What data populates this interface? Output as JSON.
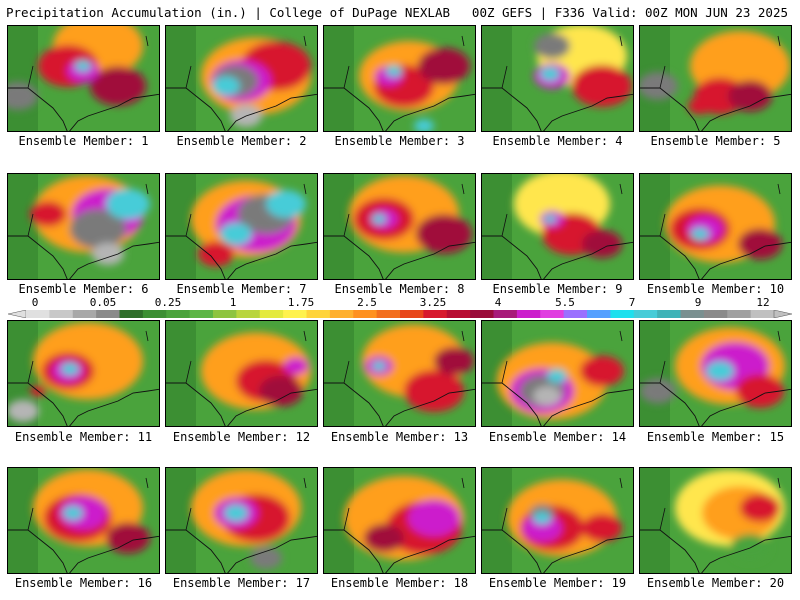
{
  "header": {
    "left": "Precipitation Accumulation (in.) | College of DuPage NEXLAB",
    "right": "00Z GEFS | F336 Valid: 00Z MON JUN 23 2025"
  },
  "members": [
    {
      "label": "Ensemble Member: 1",
      "blobs": [
        [
          "#ff9f1c",
          90,
          20,
          45
        ],
        [
          "#d7192d",
          60,
          40,
          30
        ],
        [
          "#a00a3a",
          110,
          60,
          28
        ],
        [
          "#cc1fcc",
          75,
          45,
          16
        ],
        [
          "#46ccd8",
          75,
          40,
          8
        ],
        [
          "#7a7a7a",
          10,
          70,
          20
        ]
      ]
    },
    {
      "label": "Ensemble Member: 2",
      "blobs": [
        [
          "#ff9f1c",
          90,
          50,
          55
        ],
        [
          "#d7192d",
          110,
          40,
          35
        ],
        [
          "#cc1fcc",
          75,
          55,
          30
        ],
        [
          "#7a7a7a",
          70,
          55,
          22
        ],
        [
          "#46ccd8",
          60,
          60,
          14
        ],
        [
          "#b5b5b5",
          80,
          90,
          16
        ]
      ]
    },
    {
      "label": "Ensemble Member: 3",
      "blobs": [
        [
          "#ff9f1c",
          85,
          50,
          50
        ],
        [
          "#d7192d",
          80,
          60,
          30
        ],
        [
          "#a00a3a",
          120,
          40,
          26
        ],
        [
          "#cc1fcc",
          65,
          50,
          14
        ],
        [
          "#46ccd8",
          70,
          45,
          8
        ],
        [
          "#46ccd8",
          100,
          100,
          10
        ]
      ]
    },
    {
      "label": "Ensemble Member: 4",
      "blobs": [
        [
          "#ffe64d",
          100,
          30,
          45
        ],
        [
          "#d7192d",
          120,
          60,
          30
        ],
        [
          "#cc1fcc",
          70,
          50,
          18
        ],
        [
          "#46ccd8",
          68,
          48,
          10
        ],
        [
          "#7a7a7a",
          70,
          20,
          18
        ]
      ]
    },
    {
      "label": "Ensemble Member: 5",
      "blobs": [
        [
          "#ff9f1c",
          100,
          40,
          50
        ],
        [
          "#d7192d",
          80,
          70,
          26
        ],
        [
          "#a00a3a",
          110,
          70,
          22
        ],
        [
          "#7a7a7a",
          18,
          60,
          20
        ],
        [
          "#d7192d",
          60,
          80,
          12
        ]
      ]
    },
    {
      "label": "Ensemble Member: 6",
      "blobs": [
        [
          "#ff9f1c",
          80,
          40,
          55
        ],
        [
          "#cc1fcc",
          100,
          40,
          36
        ],
        [
          "#7a7a7a",
          90,
          55,
          28
        ],
        [
          "#46ccd8",
          120,
          30,
          22
        ],
        [
          "#b5b5b5",
          100,
          80,
          16
        ],
        [
          "#d7192d",
          40,
          40,
          18
        ]
      ]
    },
    {
      "label": "Ensemble Member: 7",
      "blobs": [
        [
          "#ff9f1c",
          80,
          45,
          55
        ],
        [
          "#cc1fcc",
          90,
          50,
          40
        ],
        [
          "#7a7a7a",
          100,
          40,
          28
        ],
        [
          "#46ccd8",
          120,
          30,
          20
        ],
        [
          "#46ccd8",
          70,
          60,
          16
        ],
        [
          "#d7192d",
          50,
          80,
          18
        ]
      ]
    },
    {
      "label": "Ensemble Member: 8",
      "blobs": [
        [
          "#ff9f1c",
          80,
          40,
          55
        ],
        [
          "#d7192d",
          60,
          45,
          30
        ],
        [
          "#a00a3a",
          120,
          60,
          28
        ],
        [
          "#cc1fcc",
          60,
          45,
          14
        ],
        [
          "#46ccd8",
          55,
          45,
          7
        ]
      ]
    },
    {
      "label": "Ensemble Member: 9",
      "blobs": [
        [
          "#ffe64d",
          80,
          30,
          48
        ],
        [
          "#d7192d",
          90,
          60,
          30
        ],
        [
          "#cc1fcc",
          70,
          45,
          12
        ],
        [
          "#46ccd8",
          68,
          45,
          6
        ],
        [
          "#a00a3a",
          120,
          70,
          20
        ]
      ]
    },
    {
      "label": "Ensemble Member: 10",
      "blobs": [
        [
          "#ff9f1c",
          80,
          50,
          55
        ],
        [
          "#d7192d",
          60,
          55,
          30
        ],
        [
          "#cc1fcc",
          65,
          55,
          18
        ],
        [
          "#46ccd8",
          60,
          60,
          9
        ],
        [
          "#a00a3a",
          120,
          70,
          22
        ]
      ]
    },
    {
      "label": "Ensemble Member: 11",
      "blobs": [
        [
          "#ff9f1c",
          80,
          40,
          55
        ],
        [
          "#d7192d",
          60,
          50,
          26
        ],
        [
          "#cc1fcc",
          60,
          50,
          16
        ],
        [
          "#46ccd8",
          62,
          48,
          9
        ],
        [
          "#b5b5b5",
          15,
          90,
          16
        ],
        [
          "#d7192d",
          30,
          70,
          8
        ]
      ]
    },
    {
      "label": "Ensemble Member: 12",
      "blobs": [
        [
          "#ff9f1c",
          90,
          50,
          55
        ],
        [
          "#d7192d",
          100,
          60,
          30
        ],
        [
          "#a00a3a",
          115,
          70,
          22
        ],
        [
          "#cc1fcc",
          130,
          45,
          12
        ]
      ]
    },
    {
      "label": "Ensemble Member: 13",
      "blobs": [
        [
          "#ff9f1c",
          90,
          40,
          52
        ],
        [
          "#d7192d",
          110,
          70,
          30
        ],
        [
          "#cc1fcc",
          55,
          45,
          14
        ],
        [
          "#46ccd8",
          55,
          45,
          7
        ],
        [
          "#a00a3a",
          130,
          40,
          20
        ]
      ]
    },
    {
      "label": "Ensemble Member: 14",
      "blobs": [
        [
          "#ff9f1c",
          70,
          60,
          55
        ],
        [
          "#cc1fcc",
          60,
          70,
          32
        ],
        [
          "#7a7a7a",
          60,
          70,
          22
        ],
        [
          "#b5b5b5",
          65,
          75,
          14
        ],
        [
          "#46ccd8",
          75,
          55,
          10
        ],
        [
          "#d7192d",
          120,
          50,
          22
        ]
      ]
    },
    {
      "label": "Ensemble Member: 15",
      "blobs": [
        [
          "#ff9f1c",
          90,
          45,
          55
        ],
        [
          "#cc1fcc",
          95,
          45,
          34
        ],
        [
          "#46ccd8",
          80,
          50,
          14
        ],
        [
          "#d7192d",
          120,
          70,
          24
        ],
        [
          "#7a7a7a",
          18,
          70,
          18
        ]
      ]
    },
    {
      "label": "Ensemble Member: 16",
      "blobs": [
        [
          "#ff9f1c",
          80,
          40,
          55
        ],
        [
          "#d7192d",
          70,
          50,
          34
        ],
        [
          "#cc1fcc",
          75,
          45,
          24
        ],
        [
          "#46ccd8",
          65,
          45,
          10
        ],
        [
          "#a00a3a",
          120,
          70,
          22
        ]
      ]
    },
    {
      "label": "Ensemble Member: 17",
      "blobs": [
        [
          "#ff9f1c",
          80,
          40,
          55
        ],
        [
          "#d7192d",
          90,
          50,
          34
        ],
        [
          "#cc1fcc",
          70,
          45,
          22
        ],
        [
          "#46ccd8",
          70,
          45,
          12
        ],
        [
          "#7a7a7a",
          100,
          90,
          16
        ]
      ]
    },
    {
      "label": "Ensemble Member: 18",
      "blobs": [
        [
          "#ff9f1c",
          80,
          50,
          60
        ],
        [
          "#d7192d",
          100,
          60,
          38
        ],
        [
          "#cc1fcc",
          110,
          50,
          26
        ],
        [
          "#a00a3a",
          60,
          70,
          20
        ]
      ]
    },
    {
      "label": "Ensemble Member: 19",
      "blobs": [
        [
          "#ff9f1c",
          80,
          50,
          55
        ],
        [
          "#d7192d",
          70,
          60,
          32
        ],
        [
          "#cc1fcc",
          60,
          60,
          20
        ],
        [
          "#7a7a7a",
          60,
          45,
          12
        ],
        [
          "#46ccd8",
          60,
          50,
          9
        ],
        [
          "#d7192d",
          120,
          60,
          20
        ]
      ]
    },
    {
      "label": "Ensemble Member: 20",
      "blobs": [
        [
          "#ffe64d",
          90,
          40,
          55
        ],
        [
          "#ff9f1c",
          100,
          45,
          38
        ],
        [
          "#d7192d",
          120,
          40,
          20
        ],
        [
          "#4aa33c",
          110,
          80,
          20
        ]
      ]
    }
  ],
  "colorbar": {
    "labels": [
      "0",
      "0.05",
      "0.25",
      "1",
      "1.75",
      "2.5",
      "3.25",
      "4",
      "5.5",
      "7",
      "9",
      "12"
    ],
    "colors": [
      "#e0e0e0",
      "#c8c8c8",
      "#a8a8a8",
      "#8a8a8a",
      "#2f6e2a",
      "#3c8f33",
      "#4aa33c",
      "#5eb545",
      "#8ec43f",
      "#b9d53e",
      "#e4ea3f",
      "#fff24d",
      "#ffd43a",
      "#ffb02e",
      "#ff9120",
      "#f36f1e",
      "#e8471b",
      "#d7192d",
      "#b80d32",
      "#9a0b3a",
      "#a81a7a",
      "#cc1fcc",
      "#e03fe0",
      "#9a70ff",
      "#55a0ff",
      "#1ee0ee",
      "#46ccd8",
      "#3fb3b8",
      "#7a9090",
      "#8a8a8a",
      "#a0a0a0",
      "#c0c0c0"
    ]
  }
}
